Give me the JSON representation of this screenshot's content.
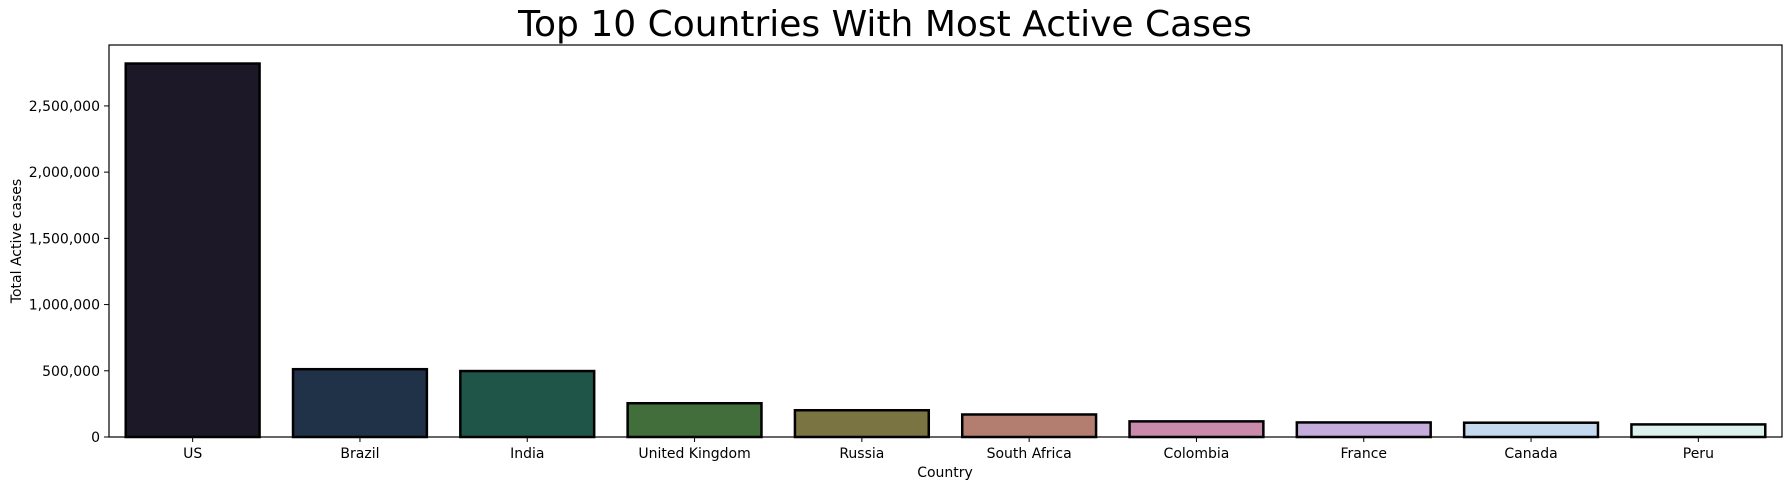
{
  "chart_data": {
    "type": "bar",
    "title": "Top 10 Countries With Most Active Cases",
    "xlabel": "Country",
    "ylabel": "Total Active cases",
    "categories": [
      "US",
      "Brazil",
      "India",
      "United Kingdom",
      "Russia",
      "South Africa",
      "Colombia",
      "France",
      "Canada",
      "Peru"
    ],
    "values": [
      2820000,
      512000,
      498000,
      255000,
      202000,
      170000,
      118000,
      110000,
      108000,
      95000
    ],
    "colors": [
      "#1c1828",
      "#1f3248",
      "#1f5548",
      "#426e3c",
      "#7a7442",
      "#b37e70",
      "#c98aac",
      "#c4acdc",
      "#c4d8f0",
      "#dcf0ec"
    ],
    "ylim": [
      0,
      2960000
    ],
    "yticks": [
      0,
      500000,
      1000000,
      1500000,
      2000000,
      2500000
    ],
    "ytick_labels": [
      "0",
      "500,000",
      "1,000,000",
      "1,500,000",
      "2,000,000",
      "2,500,000"
    ],
    "grid": false,
    "bar_edge_color": "#000000"
  }
}
